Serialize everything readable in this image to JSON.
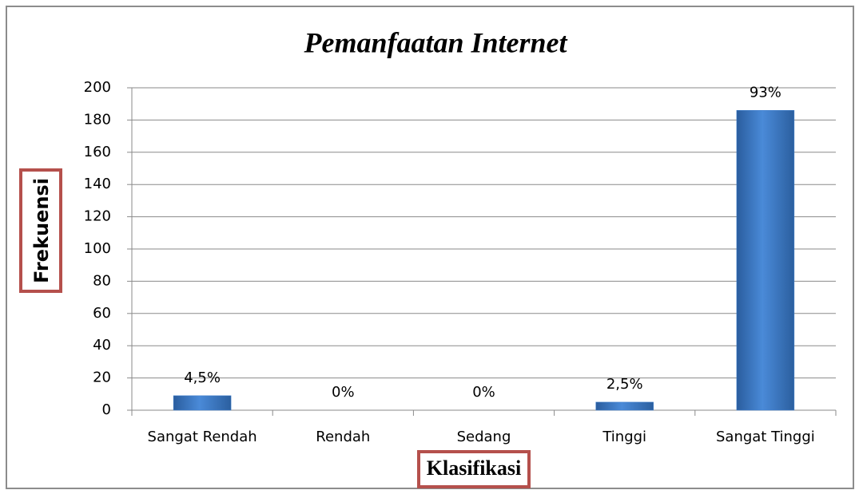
{
  "chart_data": {
    "type": "bar",
    "title": "Pemanfaatan Internet",
    "x_label": "Klasifikasi",
    "y_label": "Frekuensi",
    "categories": [
      "Sangat Rendah",
      "Rendah",
      "Sedang",
      "Tinggi",
      "Sangat Tinggi"
    ],
    "values": [
      9,
      0,
      0,
      5,
      186
    ],
    "value_labels": [
      "4,5%",
      "0%",
      "0%",
      "2,5%",
      "93%"
    ],
    "color": "#3f7fce",
    "ylim": [
      0,
      200
    ],
    "yticks": [
      0,
      20,
      40,
      60,
      80,
      100,
      120,
      140,
      160,
      180,
      200
    ],
    "grid": true
  }
}
